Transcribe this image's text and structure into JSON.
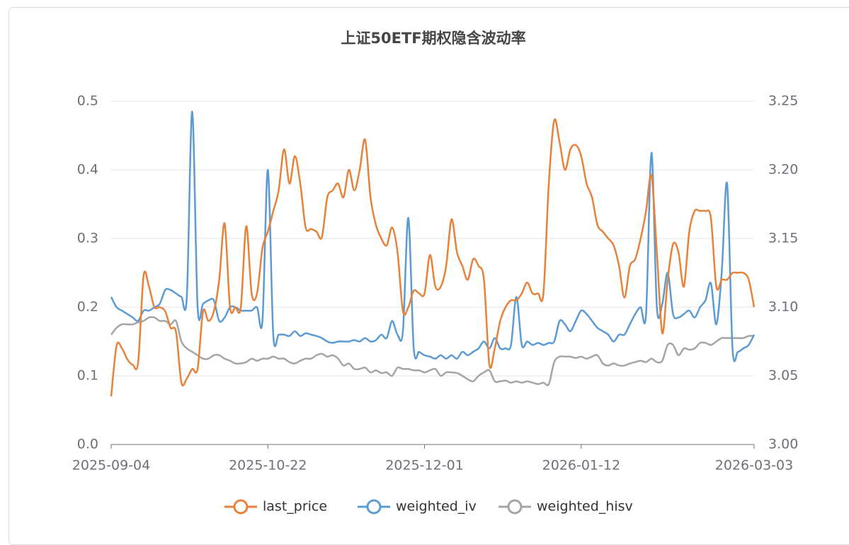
{
  "chart_data": {
    "type": "line",
    "title": "上证50ETF期权隐含波动率",
    "categories": [
      "2025-09-04",
      null,
      null,
      null,
      null,
      null,
      null,
      null,
      null,
      null,
      null,
      null,
      null,
      null,
      null,
      null,
      null,
      null,
      null,
      null,
      null,
      null,
      null,
      null,
      null,
      null,
      null,
      null,
      null,
      "2025-10-22",
      null,
      null,
      null,
      null,
      null,
      null,
      null,
      null,
      null,
      null,
      null,
      null,
      null,
      null,
      null,
      null,
      null,
      null,
      null,
      null,
      null,
      null,
      null,
      null,
      null,
      null,
      null,
      null,
      "2025-12-01",
      null,
      null,
      null,
      null,
      null,
      null,
      null,
      null,
      null,
      null,
      null,
      null,
      null,
      null,
      null,
      null,
      null,
      null,
      null,
      null,
      null,
      null,
      null,
      null,
      null,
      null,
      null,
      null,
      "2026-01-12",
      null,
      null,
      null,
      null,
      null,
      null,
      null,
      null,
      null,
      null,
      null,
      null,
      null,
      null,
      null,
      null,
      null,
      null,
      null,
      null,
      null,
      null,
      null,
      null,
      null,
      null,
      null,
      null,
      null,
      null,
      null,
      "2026-03-03"
    ],
    "series": [
      {
        "name": "last_price",
        "color": "#e8813a",
        "axis": "y2",
        "values": [
          3.035,
          3.072,
          3.07,
          3.062,
          3.058,
          3.06,
          3.123,
          3.115,
          3.1,
          3.1,
          3.097,
          3.085,
          3.082,
          3.045,
          3.048,
          3.055,
          3.055,
          3.097,
          3.09,
          3.097,
          3.12,
          3.161,
          3.1,
          3.1,
          3.1,
          3.159,
          3.11,
          3.11,
          3.143,
          3.155,
          3.17,
          3.185,
          3.215,
          3.19,
          3.21,
          3.19,
          3.158,
          3.157,
          3.155,
          3.151,
          3.18,
          3.185,
          3.19,
          3.18,
          3.2,
          3.185,
          3.2,
          3.222,
          3.18,
          3.16,
          3.15,
          3.145,
          3.158,
          3.14,
          3.097,
          3.1,
          3.112,
          3.11,
          3.11,
          3.138,
          3.115,
          3.115,
          3.13,
          3.164,
          3.14,
          3.13,
          3.12,
          3.135,
          3.13,
          3.12,
          3.058,
          3.07,
          3.09,
          3.1,
          3.105,
          3.105,
          3.11,
          3.118,
          3.11,
          3.11,
          3.11,
          3.19,
          3.236,
          3.22,
          3.2,
          3.215,
          3.218,
          3.21,
          3.19,
          3.18,
          3.16,
          3.155,
          3.15,
          3.145,
          3.13,
          3.107,
          3.13,
          3.135,
          3.15,
          3.17,
          3.196,
          3.14,
          3.081,
          3.12,
          3.146,
          3.14,
          3.115,
          3.155,
          3.17,
          3.17,
          3.17,
          3.165,
          3.115,
          3.12,
          3.12,
          3.125,
          3.125,
          3.125,
          3.12,
          3.1
        ]
      },
      {
        "name": "weighted_iv",
        "color": "#5b9bd5",
        "values": [
          0.215,
          0.2,
          0.195,
          0.19,
          0.185,
          0.18,
          0.195,
          0.195,
          0.2,
          0.205,
          0.225,
          0.225,
          0.22,
          0.215,
          0.215,
          0.485,
          0.2,
          0.205,
          0.21,
          0.21,
          0.18,
          0.185,
          0.2,
          0.2,
          0.195,
          0.195,
          0.195,
          0.2,
          0.18,
          0.4,
          0.16,
          0.16,
          0.16,
          0.158,
          0.165,
          0.158,
          0.162,
          0.16,
          0.158,
          0.155,
          0.15,
          0.148,
          0.15,
          0.15,
          0.15,
          0.152,
          0.15,
          0.155,
          0.15,
          0.152,
          0.16,
          0.155,
          0.18,
          0.16,
          0.165,
          0.33,
          0.14,
          0.135,
          0.13,
          0.128,
          0.125,
          0.13,
          0.125,
          0.13,
          0.125,
          0.135,
          0.13,
          0.135,
          0.14,
          0.15,
          0.14,
          0.155,
          0.14,
          0.14,
          0.145,
          0.215,
          0.145,
          0.15,
          0.145,
          0.148,
          0.145,
          0.148,
          0.15,
          0.18,
          0.175,
          0.165,
          0.18,
          0.195,
          0.19,
          0.18,
          0.17,
          0.165,
          0.16,
          0.15,
          0.16,
          0.16,
          0.175,
          0.19,
          0.2,
          0.19,
          0.425,
          0.2,
          0.205,
          0.25,
          0.19,
          0.185,
          0.19,
          0.195,
          0.185,
          0.2,
          0.21,
          0.235,
          0.175,
          0.25,
          0.38,
          0.14,
          0.135,
          0.14,
          0.145,
          0.16
        ]
      },
      {
        "name": "weighted_hisv",
        "color": "#a5a5a5",
        "values": [
          0.16,
          0.17,
          0.175,
          0.175,
          0.175,
          0.178,
          0.18,
          0.185,
          0.185,
          0.18,
          0.18,
          0.175,
          0.18,
          0.15,
          0.14,
          0.135,
          0.13,
          0.125,
          0.125,
          0.13,
          0.13,
          0.125,
          0.122,
          0.118,
          0.118,
          0.12,
          0.125,
          0.122,
          0.125,
          0.125,
          0.128,
          0.125,
          0.125,
          0.12,
          0.118,
          0.122,
          0.125,
          0.125,
          0.13,
          0.132,
          0.128,
          0.13,
          0.125,
          0.115,
          0.118,
          0.11,
          0.11,
          0.112,
          0.105,
          0.108,
          0.104,
          0.105,
          0.1,
          0.112,
          0.11,
          0.11,
          0.108,
          0.108,
          0.105,
          0.108,
          0.11,
          0.1,
          0.105,
          0.105,
          0.104,
          0.1,
          0.095,
          0.092,
          0.1,
          0.105,
          0.108,
          0.092,
          0.092,
          0.093,
          0.09,
          0.092,
          0.09,
          0.092,
          0.09,
          0.088,
          0.09,
          0.088,
          0.12,
          0.128,
          0.128,
          0.128,
          0.126,
          0.128,
          0.125,
          0.128,
          0.13,
          0.118,
          0.115,
          0.118,
          0.115,
          0.115,
          0.118,
          0.12,
          0.122,
          0.12,
          0.125,
          0.12,
          0.122,
          0.145,
          0.145,
          0.13,
          0.14,
          0.138,
          0.14,
          0.148,
          0.148,
          0.145,
          0.15,
          0.155,
          0.155,
          0.155,
          0.155,
          0.155,
          0.158,
          0.158
        ]
      }
    ],
    "ylim": [
      0,
      0.5
    ],
    "yticks": [
      {
        "value": 0,
        "label": "0.0"
      },
      0.1,
      0.2,
      0.3,
      0.4,
      0.5
    ],
    "y2lim": [
      3,
      3.25
    ],
    "y2ticks": [
      {
        "value": 3,
        "label": "3.00"
      },
      3.05,
      {
        "value": 3.1,
        "label": "3.10"
      },
      3.15,
      {
        "value": 3.2,
        "label": "3.20"
      },
      3.25
    ],
    "grid": true,
    "legend": "bottom"
  }
}
